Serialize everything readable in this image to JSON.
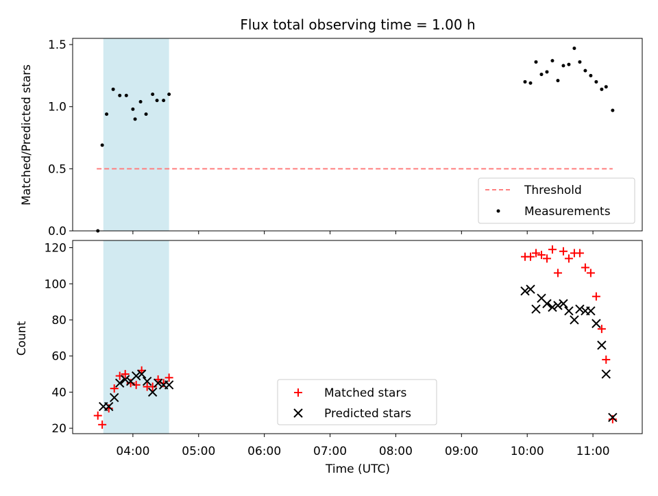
{
  "title": "Flux total observing time = 1.00 h",
  "colors": {
    "shade": "#add8e6",
    "threshold": "#ff7f7f",
    "measurement": "#000000",
    "matched": "#ff0000",
    "predicted": "#000000"
  },
  "chart_data": [
    {
      "type": "scatter",
      "ylabel": "Matched/Predicted stars",
      "ylim": [
        0,
        1.55
      ],
      "yticks": [
        0,
        0.5,
        1.0,
        1.5
      ],
      "yticklabels": [
        "0.0",
        "0.5",
        "1.0",
        "1.5"
      ],
      "xlim": [
        "03:05",
        "11:45"
      ],
      "shaded_interval": [
        "03:33",
        "04:33"
      ],
      "threshold": {
        "name": "Threshold",
        "value": 0.5,
        "x_range": [
          "03:27",
          "11:18"
        ],
        "style": "dashed"
      },
      "legend": {
        "placement": "lower right",
        "entries": [
          "Threshold",
          "Measurements"
        ]
      },
      "series": [
        {
          "name": "Measurements",
          "marker": "dot",
          "points": [
            [
              "03:28",
              0.0
            ],
            [
              "03:32",
              0.69
            ],
            [
              "03:36",
              0.94
            ],
            [
              "03:42",
              1.14
            ],
            [
              "03:48",
              1.09
            ],
            [
              "03:54",
              1.09
            ],
            [
              "03:60",
              0.98
            ],
            [
              "04:02",
              0.9
            ],
            [
              "04:07",
              1.04
            ],
            [
              "04:12",
              0.94
            ],
            [
              "04:18",
              1.1
            ],
            [
              "04:22",
              1.05
            ],
            [
              "04:28",
              1.05
            ],
            [
              "04:33",
              1.1
            ],
            [
              "09:58",
              1.2
            ],
            [
              "10:03",
              1.19
            ],
            [
              "10:08",
              1.36
            ],
            [
              "10:13",
              1.26
            ],
            [
              "10:18",
              1.28
            ],
            [
              "10:23",
              1.37
            ],
            [
              "10:28",
              1.21
            ],
            [
              "10:33",
              1.33
            ],
            [
              "10:38",
              1.34
            ],
            [
              "10:43",
              1.47
            ],
            [
              "10:48",
              1.36
            ],
            [
              "10:53",
              1.29
            ],
            [
              "10:58",
              1.25
            ],
            [
              "11:03",
              1.2
            ],
            [
              "11:08",
              1.14
            ],
            [
              "11:12",
              1.16
            ],
            [
              "11:18",
              0.97
            ]
          ]
        }
      ]
    },
    {
      "type": "scatter",
      "xlabel": "Time (UTC)",
      "ylabel": "Count",
      "ylim": [
        17,
        124
      ],
      "yticks": [
        20,
        40,
        60,
        80,
        100,
        120
      ],
      "yticklabels": [
        "20",
        "40",
        "60",
        "80",
        "100",
        "120"
      ],
      "xlim": [
        "03:05",
        "11:45"
      ],
      "xticks": [
        "04:00",
        "05:00",
        "06:00",
        "07:00",
        "08:00",
        "09:00",
        "10:00",
        "11:00"
      ],
      "shaded_interval": [
        "03:33",
        "04:33"
      ],
      "legend": {
        "placement": "lower center",
        "entries": [
          "Matched stars",
          "Predicted stars"
        ]
      },
      "series": [
        {
          "name": "Matched stars",
          "marker": "plus",
          "points": [
            [
              "03:28",
              27
            ],
            [
              "03:32",
              22
            ],
            [
              "03:38",
              31
            ],
            [
              "03:43",
              42
            ],
            [
              "03:48",
              49
            ],
            [
              "03:53",
              50
            ],
            [
              "03:58",
              45
            ],
            [
              "04:03",
              44
            ],
            [
              "04:08",
              52
            ],
            [
              "04:13",
              43
            ],
            [
              "04:18",
              43
            ],
            [
              "04:23",
              47
            ],
            [
              "04:28",
              45
            ],
            [
              "04:33",
              48
            ],
            [
              "09:58",
              115
            ],
            [
              "10:03",
              115
            ],
            [
              "10:08",
              117
            ],
            [
              "10:13",
              116
            ],
            [
              "10:18",
              114
            ],
            [
              "10:23",
              119
            ],
            [
              "10:28",
              106
            ],
            [
              "10:33",
              118
            ],
            [
              "10:38",
              114
            ],
            [
              "10:43",
              117
            ],
            [
              "10:48",
              117
            ],
            [
              "10:53",
              109
            ],
            [
              "10:58",
              106
            ],
            [
              "11:03",
              93
            ],
            [
              "11:08",
              75
            ],
            [
              "11:12",
              58
            ],
            [
              "11:18",
              25
            ]
          ]
        },
        {
          "name": "Predicted stars",
          "marker": "x",
          "points": [
            [
              "03:33",
              32
            ],
            [
              "03:38",
              32
            ],
            [
              "03:43",
              37
            ],
            [
              "03:48",
              45
            ],
            [
              "03:53",
              47
            ],
            [
              "03:58",
              46
            ],
            [
              "04:03",
              49
            ],
            [
              "04:08",
              50
            ],
            [
              "04:13",
              46
            ],
            [
              "04:18",
              40
            ],
            [
              "04:23",
              45
            ],
            [
              "04:28",
              44
            ],
            [
              "04:33",
              44
            ],
            [
              "09:58",
              96
            ],
            [
              "10:03",
              97
            ],
            [
              "10:08",
              86
            ],
            [
              "10:13",
              92
            ],
            [
              "10:18",
              89
            ],
            [
              "10:23",
              87
            ],
            [
              "10:28",
              88
            ],
            [
              "10:33",
              89
            ],
            [
              "10:38",
              85
            ],
            [
              "10:43",
              80
            ],
            [
              "10:48",
              86
            ],
            [
              "10:53",
              85
            ],
            [
              "10:58",
              85
            ],
            [
              "11:03",
              78
            ],
            [
              "11:08",
              66
            ],
            [
              "11:12",
              50
            ],
            [
              "11:18",
              26
            ]
          ]
        }
      ]
    }
  ]
}
